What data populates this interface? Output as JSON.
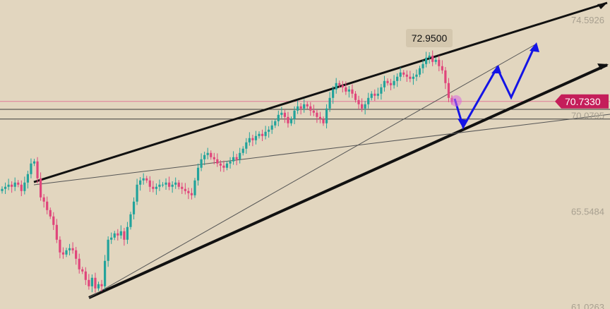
{
  "chart_data": {
    "type": "candlestick",
    "ylim": [
      61.0263,
      74.5926
    ],
    "yticks": [
      "74.5926",
      "70.0795",
      "65.5484",
      "61.0263"
    ],
    "current_price": "70.7330",
    "high_annotation": "72.9500",
    "horizontal_levels": [
      70.733,
      70.36,
      69.9
    ],
    "grid": false,
    "colors": {
      "background": "#e2d6bf",
      "up_candle": "#22a39b",
      "down_candle": "#e0457b",
      "trendline": "#111111",
      "arrow": "#1414e6",
      "price_tag": "#c41e5a",
      "annotation_bg": "#d4c7ae",
      "axis_text": "#a8a090"
    },
    "candles_close": [
      66.6,
      66.7,
      66.8,
      66.7,
      66.9,
      66.8,
      66.5,
      66.9,
      67.3,
      67.8,
      67.9,
      67.1,
      66.2,
      66.0,
      65.6,
      65.3,
      64.9,
      64.2,
      63.6,
      63.5,
      63.7,
      63.8,
      63.7,
      63.3,
      62.8,
      62.7,
      62.3,
      62.0,
      62.4,
      61.9,
      62.1,
      62.0,
      63.2,
      64.2,
      64.3,
      64.5,
      64.4,
      64.6,
      64.2,
      64.8,
      65.4,
      66.0,
      66.8,
      67.0,
      67.1,
      67.0,
      66.7,
      66.6,
      66.7,
      66.8,
      66.8,
      66.9,
      66.7,
      66.8,
      66.9,
      66.7,
      66.6,
      66.5,
      66.4,
      66.3,
      67.0,
      67.6,
      68.0,
      68.2,
      68.3,
      68.1,
      68.0,
      67.8,
      67.7,
      67.6,
      67.8,
      67.9,
      68.1,
      68.0,
      68.3,
      68.5,
      68.8,
      69.0,
      68.9,
      69.1,
      69.2,
      69.1,
      69.3,
      69.4,
      69.6,
      69.8,
      70.1,
      70.2,
      70.0,
      69.7,
      69.9,
      70.3,
      70.5,
      70.4,
      70.6,
      70.5,
      70.3,
      70.2,
      70.0,
      69.9,
      69.7,
      70.4,
      70.9,
      71.3,
      71.6,
      71.5,
      71.4,
      71.2,
      71.3,
      71.1,
      70.8,
      70.6,
      70.4,
      70.6,
      70.9,
      71.1,
      71.0,
      71.1,
      71.4,
      71.7,
      71.6,
      71.5,
      71.7,
      71.9,
      72.1,
      72.0,
      71.9,
      71.8,
      71.9,
      72.0,
      72.3,
      72.5,
      72.8,
      72.9,
      72.6,
      72.7,
      72.4,
      72.2,
      71.6,
      70.9,
      70.7
    ]
  }
}
